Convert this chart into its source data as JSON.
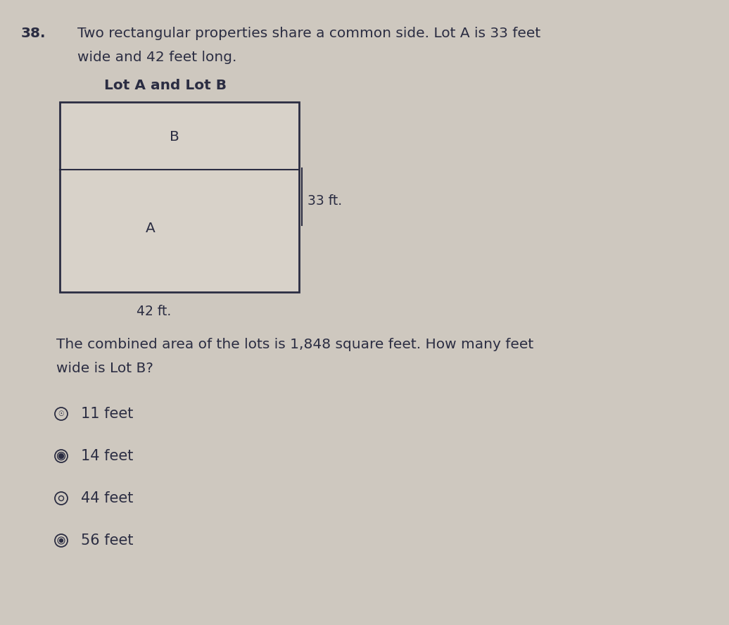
{
  "background_color": "#cec8bf",
  "question_number": "38.",
  "question_text_line1": "Two rectangular properties share a common side. Lot A is 33 feet",
  "question_text_line2": "wide and 42 feet long.",
  "diagram_title": "Lot A and Lot B",
  "lot_b_label": "B",
  "lot_a_label": "A",
  "width_label": "33 ft.",
  "length_label": "42 ft.",
  "body_text_line1": "The combined area of the lots is 1,848 square feet. How many feet",
  "body_text_line2": "wide is Lot B?",
  "options": [
    {
      "text": "11 feet",
      "symbol_type": "circled_a"
    },
    {
      "text": "14 feet",
      "symbol_type": "circled_b"
    },
    {
      "text": "44 feet",
      "symbol_type": "circled_c"
    },
    {
      "text": "56 feet",
      "symbol_type": "circled_d"
    }
  ],
  "text_color": "#2b2d42",
  "rect_fill": "#d8d2c9",
  "rect_edge": "#2b2d42",
  "font_size_main": 14.5,
  "font_size_label": 13.5,
  "font_size_option": 15
}
